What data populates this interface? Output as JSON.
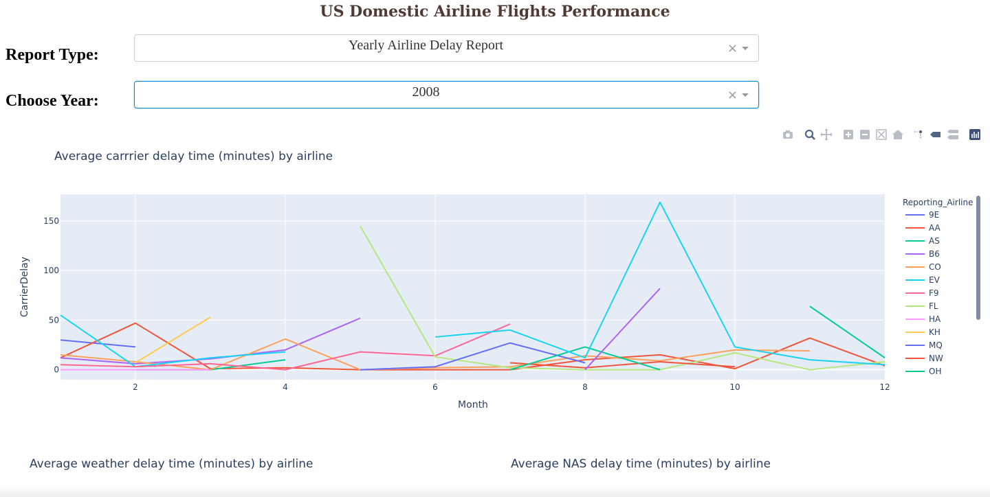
{
  "app": {
    "title": "US Domestic Airline Flights Performance"
  },
  "controls": {
    "report_type": {
      "label": "Report Type:",
      "value": "Yearly Airline Delay Report",
      "clear": "×"
    },
    "year": {
      "label": "Choose Year:",
      "value": "2008",
      "clear": "×"
    }
  },
  "modebar": {
    "buttons": [
      "camera-icon",
      "zoom-icon",
      "pan-icon",
      "zoom-in-icon",
      "zoom-out-icon",
      "autoscale-icon",
      "reset-axes-icon",
      "spike-lines-icon",
      "hover-closest-icon",
      "hover-compare-icon",
      "plotly-logo-icon"
    ]
  },
  "chart_data": {
    "type": "line",
    "title": "Average carrrier delay time (minutes) by airline",
    "xlabel": "Month",
    "ylabel": "CarrierDelay",
    "xlim": [
      1,
      12
    ],
    "ylim": [
      -10,
      177
    ],
    "xticks": [
      2,
      4,
      6,
      8,
      10,
      12
    ],
    "yticks": [
      0,
      50,
      100,
      150
    ],
    "grid": true,
    "legend": {
      "title": "Reporting_Airline",
      "placement": "right"
    },
    "series": [
      {
        "name": "9E",
        "color": "#636efa",
        "x": [
          1,
          2
        ],
        "y": [
          30,
          23
        ]
      },
      {
        "name": "AA",
        "color": "#ef553b",
        "x": [
          1,
          2,
          3,
          4,
          5,
          6,
          7,
          8,
          9,
          10,
          11,
          12
        ],
        "y": [
          12,
          47,
          1,
          2,
          0,
          0,
          0,
          10,
          15,
          1,
          32,
          4
        ]
      },
      {
        "name": "AS",
        "color": "#00cc96",
        "x": [
          2,
          3,
          4
        ],
        "y": [
          0,
          0,
          10
        ]
      },
      {
        "name": "B6",
        "color": "#ab63fa",
        "x": [
          1,
          2,
          3,
          4,
          5
        ],
        "y": [
          12,
          6,
          11,
          20,
          52
        ]
      },
      {
        "name": "CO",
        "color": "#ffa15a",
        "x": [
          1,
          2,
          3,
          4,
          5,
          6,
          7,
          8,
          9,
          10,
          11
        ],
        "y": [
          15,
          8,
          0,
          31,
          0,
          2,
          3,
          14,
          9,
          20,
          19
        ]
      },
      {
        "name": "EV",
        "color": "#19d3f3",
        "x": [
          1,
          2,
          3,
          4
        ],
        "y": [
          55,
          3,
          12,
          18
        ]
      },
      {
        "name": "F9",
        "color": "#ff6692",
        "x": [
          1,
          2,
          3,
          4,
          5,
          6,
          7
        ],
        "y": [
          5,
          3,
          6,
          0,
          18,
          14,
          46
        ]
      },
      {
        "name": "FL",
        "color": "#b6e880",
        "x": [
          5,
          6,
          7,
          8,
          9,
          10,
          11,
          12
        ],
        "y": [
          145,
          13,
          2,
          0,
          0,
          17,
          0,
          8
        ]
      },
      {
        "name": "HA",
        "color": "#ff97ff",
        "x": [
          1,
          2,
          3
        ],
        "y": [
          0,
          0,
          0
        ]
      },
      {
        "name": "KH",
        "color": "#fecb52",
        "x": [
          2,
          3
        ],
        "y": [
          7,
          53
        ]
      },
      {
        "name": "MQ",
        "color": "#636efa",
        "x": [
          5,
          6,
          7,
          8
        ],
        "y": [
          0,
          3,
          27,
          7
        ]
      },
      {
        "name": "NW",
        "color": "#ef553b",
        "x": [
          7,
          8,
          9,
          10
        ],
        "y": [
          7,
          2,
          8,
          3
        ]
      },
      {
        "name": "OH",
        "color": "#00cc96",
        "x": [
          7,
          8,
          9
        ],
        "y": [
          0,
          23,
          0
        ]
      },
      {
        "name": "",
        "color": "#ab63fa",
        "x": [
          8,
          9
        ],
        "y": [
          0,
          82
        ]
      },
      {
        "name": "",
        "color": "#19d3f3",
        "x": [
          6,
          7,
          8,
          9,
          10,
          11,
          12
        ],
        "y": [
          33,
          40,
          12,
          169,
          23,
          10,
          5
        ]
      },
      {
        "name": "",
        "color": "#00cc96",
        "x": [
          11,
          12
        ],
        "y": [
          64,
          12
        ]
      }
    ]
  },
  "subcharts": {
    "weather_title": "Average weather delay time (minutes) by airline",
    "nas_title": "Average NAS delay time (minutes) by airline"
  }
}
